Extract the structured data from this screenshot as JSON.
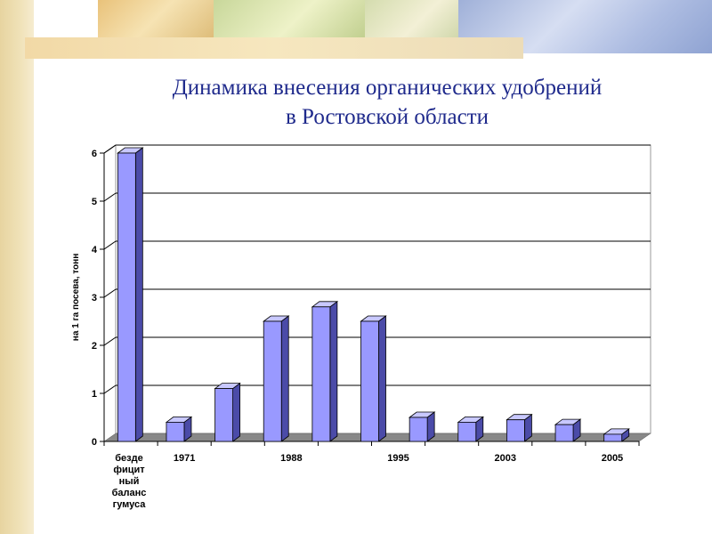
{
  "slide": {
    "title_line1": "Динамика внесения органических удобрений",
    "title_line2": "в Ростовской области"
  },
  "colors": {
    "bar_front": "#9999ff",
    "bar_side": "#4b4ba8",
    "bar_top": "#c8c8ff",
    "floor": "#888888",
    "title": "#1f2a8c"
  },
  "chart_data": {
    "type": "bar",
    "title": "",
    "xlabel": "",
    "ylabel": "на 1 га посева, тонн",
    "ylim": [
      0,
      6
    ],
    "yticks": [
      "0",
      "1",
      "2",
      "3",
      "4",
      "5",
      "6"
    ],
    "grid": true,
    "legend": "none",
    "first_category_label": [
      "безде",
      "фицит",
      "ный",
      "баланс",
      "гумуса"
    ],
    "x_tick_labels": [
      "",
      "1971",
      "",
      "1988",
      "",
      "1995",
      "",
      "2003",
      "",
      "2005"
    ],
    "values": [
      6.0,
      0.4,
      1.1,
      2.5,
      2.8,
      2.5,
      0.5,
      0.4,
      0.45,
      0.35,
      0.15
    ]
  }
}
